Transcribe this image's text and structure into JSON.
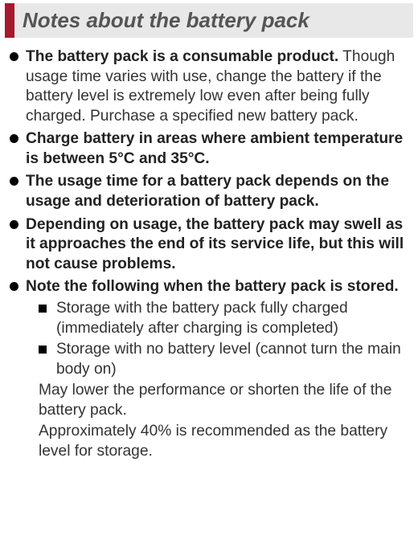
{
  "header": {
    "title": "Notes about the battery pack",
    "bar_color": "#a6192e",
    "bg_color": "#e8e8e8",
    "title_color": "#555555"
  },
  "items": [
    {
      "lead": "The battery pack is a consumable product.",
      "body": "Though usage time varies with use, change the battery if the battery level is extremely low even after being fully charged. Purchase a specified new battery pack."
    },
    {
      "lead": "Charge battery in areas where ambient temperature is between 5°C and 35°C."
    },
    {
      "lead": "The usage time for a battery pack depends on the usage and deterioration of battery pack."
    },
    {
      "lead": "Depending on usage, the battery pack may swell as it approaches the end of its service life, but this will not cause problems."
    },
    {
      "lead": "Note the following when the battery pack is stored.",
      "sub": [
        "Storage with the battery pack fully charged (immediately after charging is completed)",
        "Storage with no battery level (cannot turn the main body on)"
      ],
      "follow": [
        "May lower the performance or shorten the life of the battery pack.",
        "Approximately 40% is recommended as the battery level for storage."
      ]
    }
  ]
}
